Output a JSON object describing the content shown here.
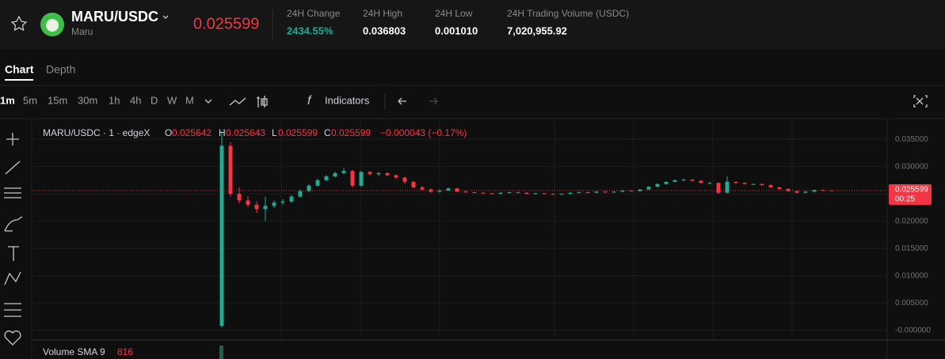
{
  "header": {
    "pair": "MARU/USDC",
    "name": "Maru",
    "price": "0.025599",
    "stats": [
      {
        "label": "24H Change",
        "value": "2434.55%"
      },
      {
        "label": "24H High",
        "value": "0.036803"
      },
      {
        "label": "24H Low",
        "value": "0.001010"
      },
      {
        "label": "24H Trading Volume (USDC)",
        "value": "7,020,955.92"
      }
    ]
  },
  "tabs": [
    "Chart",
    "Depth"
  ],
  "toolbar": {
    "intervals": [
      "1m",
      "5m",
      "15m",
      "30m",
      "1h",
      "4h",
      "D",
      "W",
      "M"
    ],
    "indicators": "Indicators"
  },
  "legend": {
    "symbol": "MARU/USDC · 1 · edgeX",
    "o_label": "O",
    "o": "0.025642",
    "h_label": "H",
    "h": "0.025643",
    "l_label": "L",
    "l": "0.025599",
    "c_label": "C",
    "c": "0.025599",
    "change": "−0.000043 (−0.17%)"
  },
  "price_tag": {
    "price": "0.025599",
    "countdown": "00:25"
  },
  "volume": {
    "label": "Volume SMA 9",
    "value": "816"
  },
  "chart_data": {
    "type": "candlestick",
    "up_color": "#22ab94",
    "down_color": "#f23645",
    "grid": true,
    "ylim": [
      -0.0015,
      0.0385
    ],
    "yticks": [
      {
        "value": 0.035,
        "label": "0.035000"
      },
      {
        "value": 0.03,
        "label": "0.030000"
      },
      {
        "value": 0.025,
        "label": "0.025000"
      },
      {
        "value": 0.02,
        "label": "0.020000"
      },
      {
        "value": 0.015,
        "label": "0.015000"
      },
      {
        "value": 0.01,
        "label": "0.010000"
      },
      {
        "value": 0.005,
        "label": "0.005000"
      },
      {
        "value": 0,
        "label": "-0.000000"
      }
    ],
    "ohlc": [
      [
        0.0008,
        0.0365,
        0.0005,
        0.0338
      ],
      [
        0.0338,
        0.0345,
        0.0245,
        0.025
      ],
      [
        0.025,
        0.0262,
        0.0232,
        0.0238
      ],
      [
        0.0238,
        0.0246,
        0.0226,
        0.023
      ],
      [
        0.023,
        0.0236,
        0.0215,
        0.0222
      ],
      [
        0.0222,
        0.0245,
        0.02,
        0.0228
      ],
      [
        0.0228,
        0.0238,
        0.0224,
        0.0234
      ],
      [
        0.0234,
        0.024,
        0.023,
        0.0236
      ],
      [
        0.0236,
        0.0248,
        0.0234,
        0.0245
      ],
      [
        0.0245,
        0.0258,
        0.0243,
        0.0255
      ],
      [
        0.0255,
        0.0268,
        0.0253,
        0.0265
      ],
      [
        0.0265,
        0.0278,
        0.0263,
        0.0275
      ],
      [
        0.0275,
        0.0285,
        0.0273,
        0.0282
      ],
      [
        0.0282,
        0.0291,
        0.028,
        0.0288
      ],
      [
        0.0288,
        0.0297,
        0.0286,
        0.0292
      ],
      [
        0.0292,
        0.0294,
        0.0262,
        0.0265
      ],
      [
        0.0265,
        0.0292,
        0.0263,
        0.029
      ],
      [
        0.029,
        0.0292,
        0.0284,
        0.0286
      ],
      [
        0.0286,
        0.029,
        0.0283,
        0.0288
      ],
      [
        0.0288,
        0.0289,
        0.0282,
        0.0284
      ],
      [
        0.0284,
        0.0286,
        0.0277,
        0.028
      ],
      [
        0.028,
        0.0281,
        0.0268,
        0.0272
      ],
      [
        0.0272,
        0.0274,
        0.026,
        0.0262
      ],
      [
        0.0262,
        0.0264,
        0.0256,
        0.0258
      ],
      [
        0.0258,
        0.026,
        0.0252,
        0.0254
      ],
      [
        0.0254,
        0.0258,
        0.0252,
        0.0256
      ],
      [
        0.0256,
        0.0262,
        0.0255,
        0.026
      ],
      [
        0.026,
        0.0261,
        0.0253,
        0.0254
      ],
      [
        0.0254,
        0.0256,
        0.0252,
        0.0253
      ],
      [
        0.0253,
        0.0254,
        0.0251,
        0.0252
      ],
      [
        0.0252,
        0.0253,
        0.025,
        0.0251
      ],
      [
        0.0251,
        0.0252,
        0.0249,
        0.025
      ],
      [
        0.025,
        0.0253,
        0.0249,
        0.0252
      ],
      [
        0.0252,
        0.0254,
        0.0251,
        0.0253
      ],
      [
        0.0253,
        0.0254,
        0.0251,
        0.0252
      ],
      [
        0.0252,
        0.0253,
        0.0249,
        0.025
      ],
      [
        0.025,
        0.0252,
        0.0249,
        0.0251
      ],
      [
        0.0251,
        0.0252,
        0.0249,
        0.025
      ],
      [
        0.025,
        0.0251,
        0.0248,
        0.0249
      ],
      [
        0.0249,
        0.0251,
        0.0248,
        0.025
      ],
      [
        0.025,
        0.0253,
        0.0249,
        0.0252
      ],
      [
        0.0252,
        0.0254,
        0.0251,
        0.0253
      ],
      [
        0.0253,
        0.0254,
        0.0251,
        0.0252
      ],
      [
        0.0252,
        0.0255,
        0.0251,
        0.0254
      ],
      [
        0.0254,
        0.0255,
        0.0252,
        0.0253
      ],
      [
        0.0253,
        0.0255,
        0.0252,
        0.0254
      ],
      [
        0.0254,
        0.0257,
        0.0253,
        0.0256
      ],
      [
        0.0256,
        0.0257,
        0.0254,
        0.0255
      ],
      [
        0.0255,
        0.0259,
        0.0254,
        0.0258
      ],
      [
        0.0258,
        0.0264,
        0.0257,
        0.0263
      ],
      [
        0.0263,
        0.0269,
        0.0262,
        0.0268
      ],
      [
        0.0268,
        0.0273,
        0.0267,
        0.0272
      ],
      [
        0.0272,
        0.0276,
        0.0271,
        0.0275
      ],
      [
        0.0275,
        0.0278,
        0.0274,
        0.0276
      ],
      [
        0.0276,
        0.0277,
        0.0273,
        0.0274
      ],
      [
        0.0274,
        0.0275,
        0.0269,
        0.027
      ],
      [
        0.027,
        0.0272,
        0.0268,
        0.027
      ],
      [
        0.027,
        0.0271,
        0.025,
        0.0252
      ],
      [
        0.0252,
        0.0282,
        0.0251,
        0.0272
      ],
      [
        0.0272,
        0.0273,
        0.0268,
        0.027
      ],
      [
        0.027,
        0.0271,
        0.0267,
        0.0268
      ],
      [
        0.0268,
        0.0269,
        0.0266,
        0.0268
      ],
      [
        0.0268,
        0.0269,
        0.0265,
        0.0266
      ],
      [
        0.0266,
        0.0267,
        0.0261,
        0.0262
      ],
      [
        0.0262,
        0.0263,
        0.0258,
        0.0259
      ],
      [
        0.0259,
        0.026,
        0.0254,
        0.0255
      ],
      [
        0.0255,
        0.0256,
        0.0251,
        0.0252
      ],
      [
        0.0252,
        0.0255,
        0.0251,
        0.0254
      ],
      [
        0.0254,
        0.0258,
        0.0253,
        0.0257
      ],
      [
        0.0257,
        0.0258,
        0.0255,
        0.025642
      ],
      [
        0.025642,
        0.025643,
        0.025599,
        0.025599
      ]
    ]
  }
}
